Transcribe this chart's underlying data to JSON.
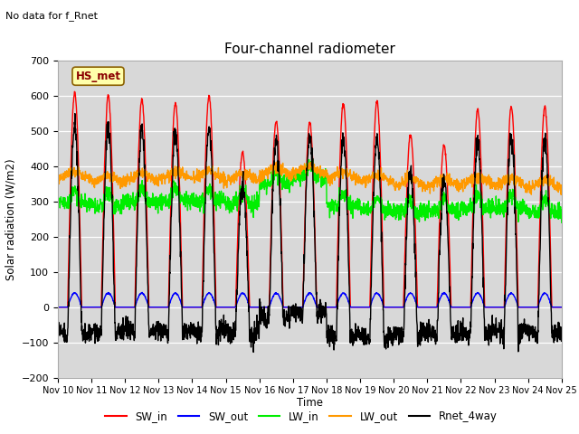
{
  "title": "Four-channel radiometer",
  "top_left_text": "No data for f_Rnet",
  "ylabel": "Solar radiation (W/m2)",
  "xlabel": "Time",
  "ylim": [
    -200,
    700
  ],
  "xlim": [
    0,
    360
  ],
  "x_tick_labels": [
    "Nov 10",
    "Nov 11",
    "Nov 12",
    "Nov 13",
    "Nov 14",
    "Nov 15",
    "Nov 16",
    "Nov 17",
    "Nov 18",
    "Nov 19",
    "Nov 20",
    "Nov 21",
    "Nov 22",
    "Nov 23",
    "Nov 24",
    "Nov 25"
  ],
  "x_tick_positions": [
    0,
    24,
    48,
    72,
    96,
    120,
    144,
    168,
    192,
    216,
    240,
    264,
    288,
    312,
    336,
    360
  ],
  "yticks": [
    -200,
    -100,
    0,
    100,
    200,
    300,
    400,
    500,
    600,
    700
  ],
  "colors": {
    "SW_in": "#ff0000",
    "SW_out": "#0000ff",
    "LW_in": "#00ee00",
    "LW_out": "#ff9900",
    "Rnet_4way": "#000000"
  },
  "legend_label": "HS_met",
  "background_plot": "#d8d8d8",
  "line_widths": {
    "SW_in": 1.0,
    "SW_out": 1.0,
    "LW_in": 1.0,
    "LW_out": 1.0,
    "Rnet_4way": 1.0
  },
  "day_peaks_SW_in": [
    610,
    600,
    590,
    580,
    600,
    440,
    530,
    525,
    580,
    585,
    490,
    460,
    560,
    570,
    570
  ],
  "night_Rnet": -90,
  "LW_in_base": 300,
  "LW_out_base": 375
}
